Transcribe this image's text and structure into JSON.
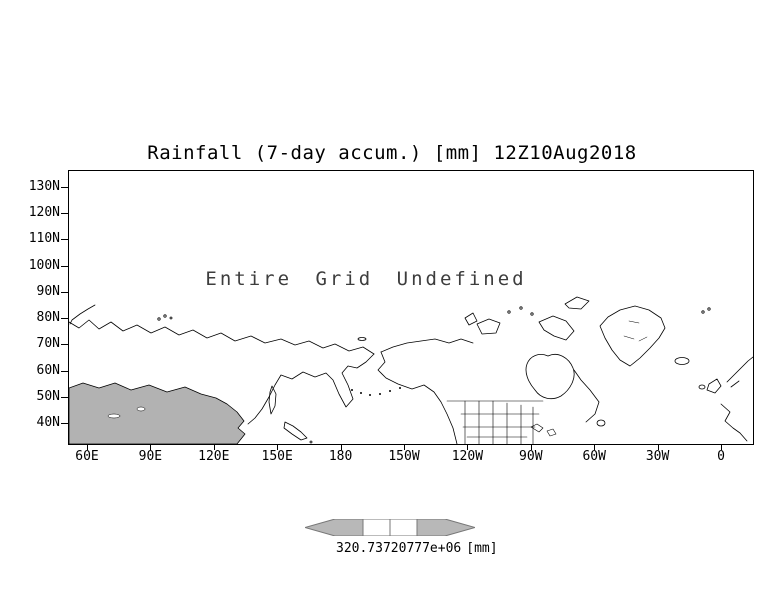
{
  "title": "Rainfall (7-day accum.) [mm] 12Z10Aug2018",
  "plot": {
    "annotation": "Entire Grid Undefined"
  },
  "axes": {
    "y": {
      "labels": [
        "130N",
        "120N",
        "110N",
        "100N",
        "90N",
        "80N",
        "70N",
        "60N",
        "50N",
        "40N"
      ]
    },
    "x": {
      "labels": [
        "60E",
        "90E",
        "120E",
        "150E",
        "180",
        "150W",
        "120W",
        "90W",
        "60W",
        "30W",
        "0"
      ]
    }
  },
  "colorbar": {
    "value_left": "320.737",
    "value_right": "20777e+06",
    "unit": "[mm]"
  },
  "colors": {
    "shaded_land": "#b2b2b2",
    "coastline": "#000000",
    "colorbar_gray": "#b8b8b8"
  },
  "chart_data": {
    "type": "heatmap",
    "title": "Rainfall (7-day accum.) [mm] 12Z10Aug2018",
    "xlabel": "",
    "ylabel": "",
    "x_tick_labels": [
      "60E",
      "90E",
      "120E",
      "150E",
      "180",
      "150W",
      "120W",
      "90W",
      "60W",
      "30W",
      "0"
    ],
    "y_tick_labels": [
      "130N",
      "120N",
      "110N",
      "100N",
      "90N",
      "80N",
      "70N",
      "60N",
      "50N",
      "40N"
    ],
    "series": [],
    "annotations": [
      "Entire Grid Undefined"
    ],
    "colorbar": {
      "labels": [
        "320.737",
        "20777e+06"
      ],
      "unit": "[mm]"
    }
  }
}
